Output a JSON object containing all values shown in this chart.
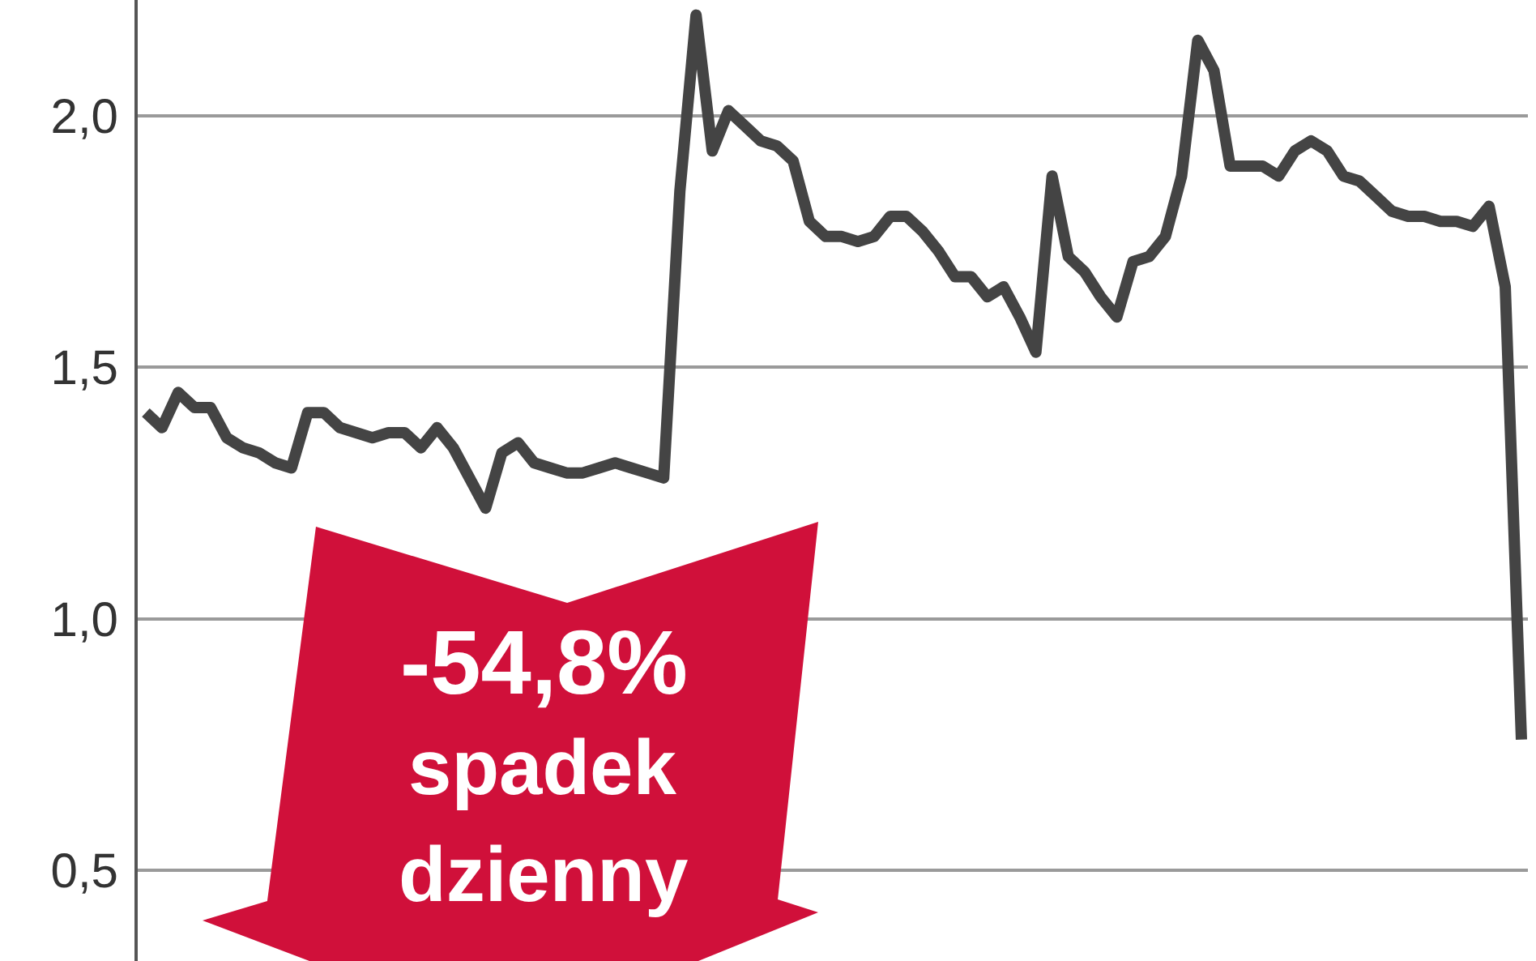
{
  "chart_data": {
    "type": "line",
    "categories": [
      null,
      null,
      null,
      null,
      null,
      null,
      null,
      null,
      null,
      null,
      null,
      null,
      null,
      null,
      null,
      null,
      null,
      null,
      null,
      null,
      null,
      null,
      null,
      null,
      null,
      null,
      null,
      null,
      null,
      null,
      null,
      null,
      null,
      null,
      null,
      null,
      null,
      null,
      null,
      null,
      null,
      null,
      null,
      null,
      null,
      null,
      null,
      null,
      null,
      null,
      null,
      null,
      null,
      null,
      null,
      null,
      null,
      null,
      null,
      null,
      null,
      null,
      null,
      null,
      null,
      null,
      null,
      null,
      null,
      null,
      null,
      null,
      null,
      null,
      null,
      null,
      null,
      null,
      null,
      null,
      null,
      null,
      null,
      null,
      null,
      null
    ],
    "series": [
      {
        "color": "#444444",
        "values": [
          1.41,
          1.38,
          1.45,
          1.42,
          1.42,
          1.36,
          1.34,
          1.33,
          1.31,
          1.3,
          1.41,
          1.41,
          1.38,
          1.37,
          1.36,
          1.37,
          1.37,
          1.34,
          1.38,
          1.34,
          1.28,
          1.22,
          1.33,
          1.35,
          1.31,
          1.3,
          1.29,
          1.29,
          1.3,
          1.31,
          1.3,
          1.29,
          1.28,
          1.85,
          2.2,
          1.93,
          2.01,
          1.98,
          1.95,
          1.94,
          1.91,
          1.79,
          1.76,
          1.76,
          1.75,
          1.76,
          1.8,
          1.8,
          1.77,
          1.73,
          1.68,
          1.68,
          1.64,
          1.66,
          1.6,
          1.53,
          1.88,
          1.72,
          1.69,
          1.64,
          1.6,
          1.71,
          1.72,
          1.76,
          1.88,
          2.15,
          2.09,
          1.9,
          1.9,
          1.9,
          1.88,
          1.93,
          1.95,
          1.93,
          1.88,
          1.87,
          1.84,
          1.81,
          1.8,
          1.8,
          1.79,
          1.79,
          1.78,
          1.82,
          1.66,
          0.76
        ]
      }
    ],
    "ylim": [
      0.32,
      2.23
    ],
    "yticks": [
      {
        "value": 0.5,
        "label": "0,5"
      },
      {
        "value": 1.0,
        "label": "1,0"
      },
      {
        "value": 1.5,
        "label": "1,5"
      },
      {
        "value": 2.0,
        "label": "2,0"
      }
    ],
    "grid": "y",
    "marker": "none",
    "line_style": "solid",
    "tick_labels": "y",
    "annotations": [
      "-54,8%\nspadek\ndzienny"
    ]
  }
}
